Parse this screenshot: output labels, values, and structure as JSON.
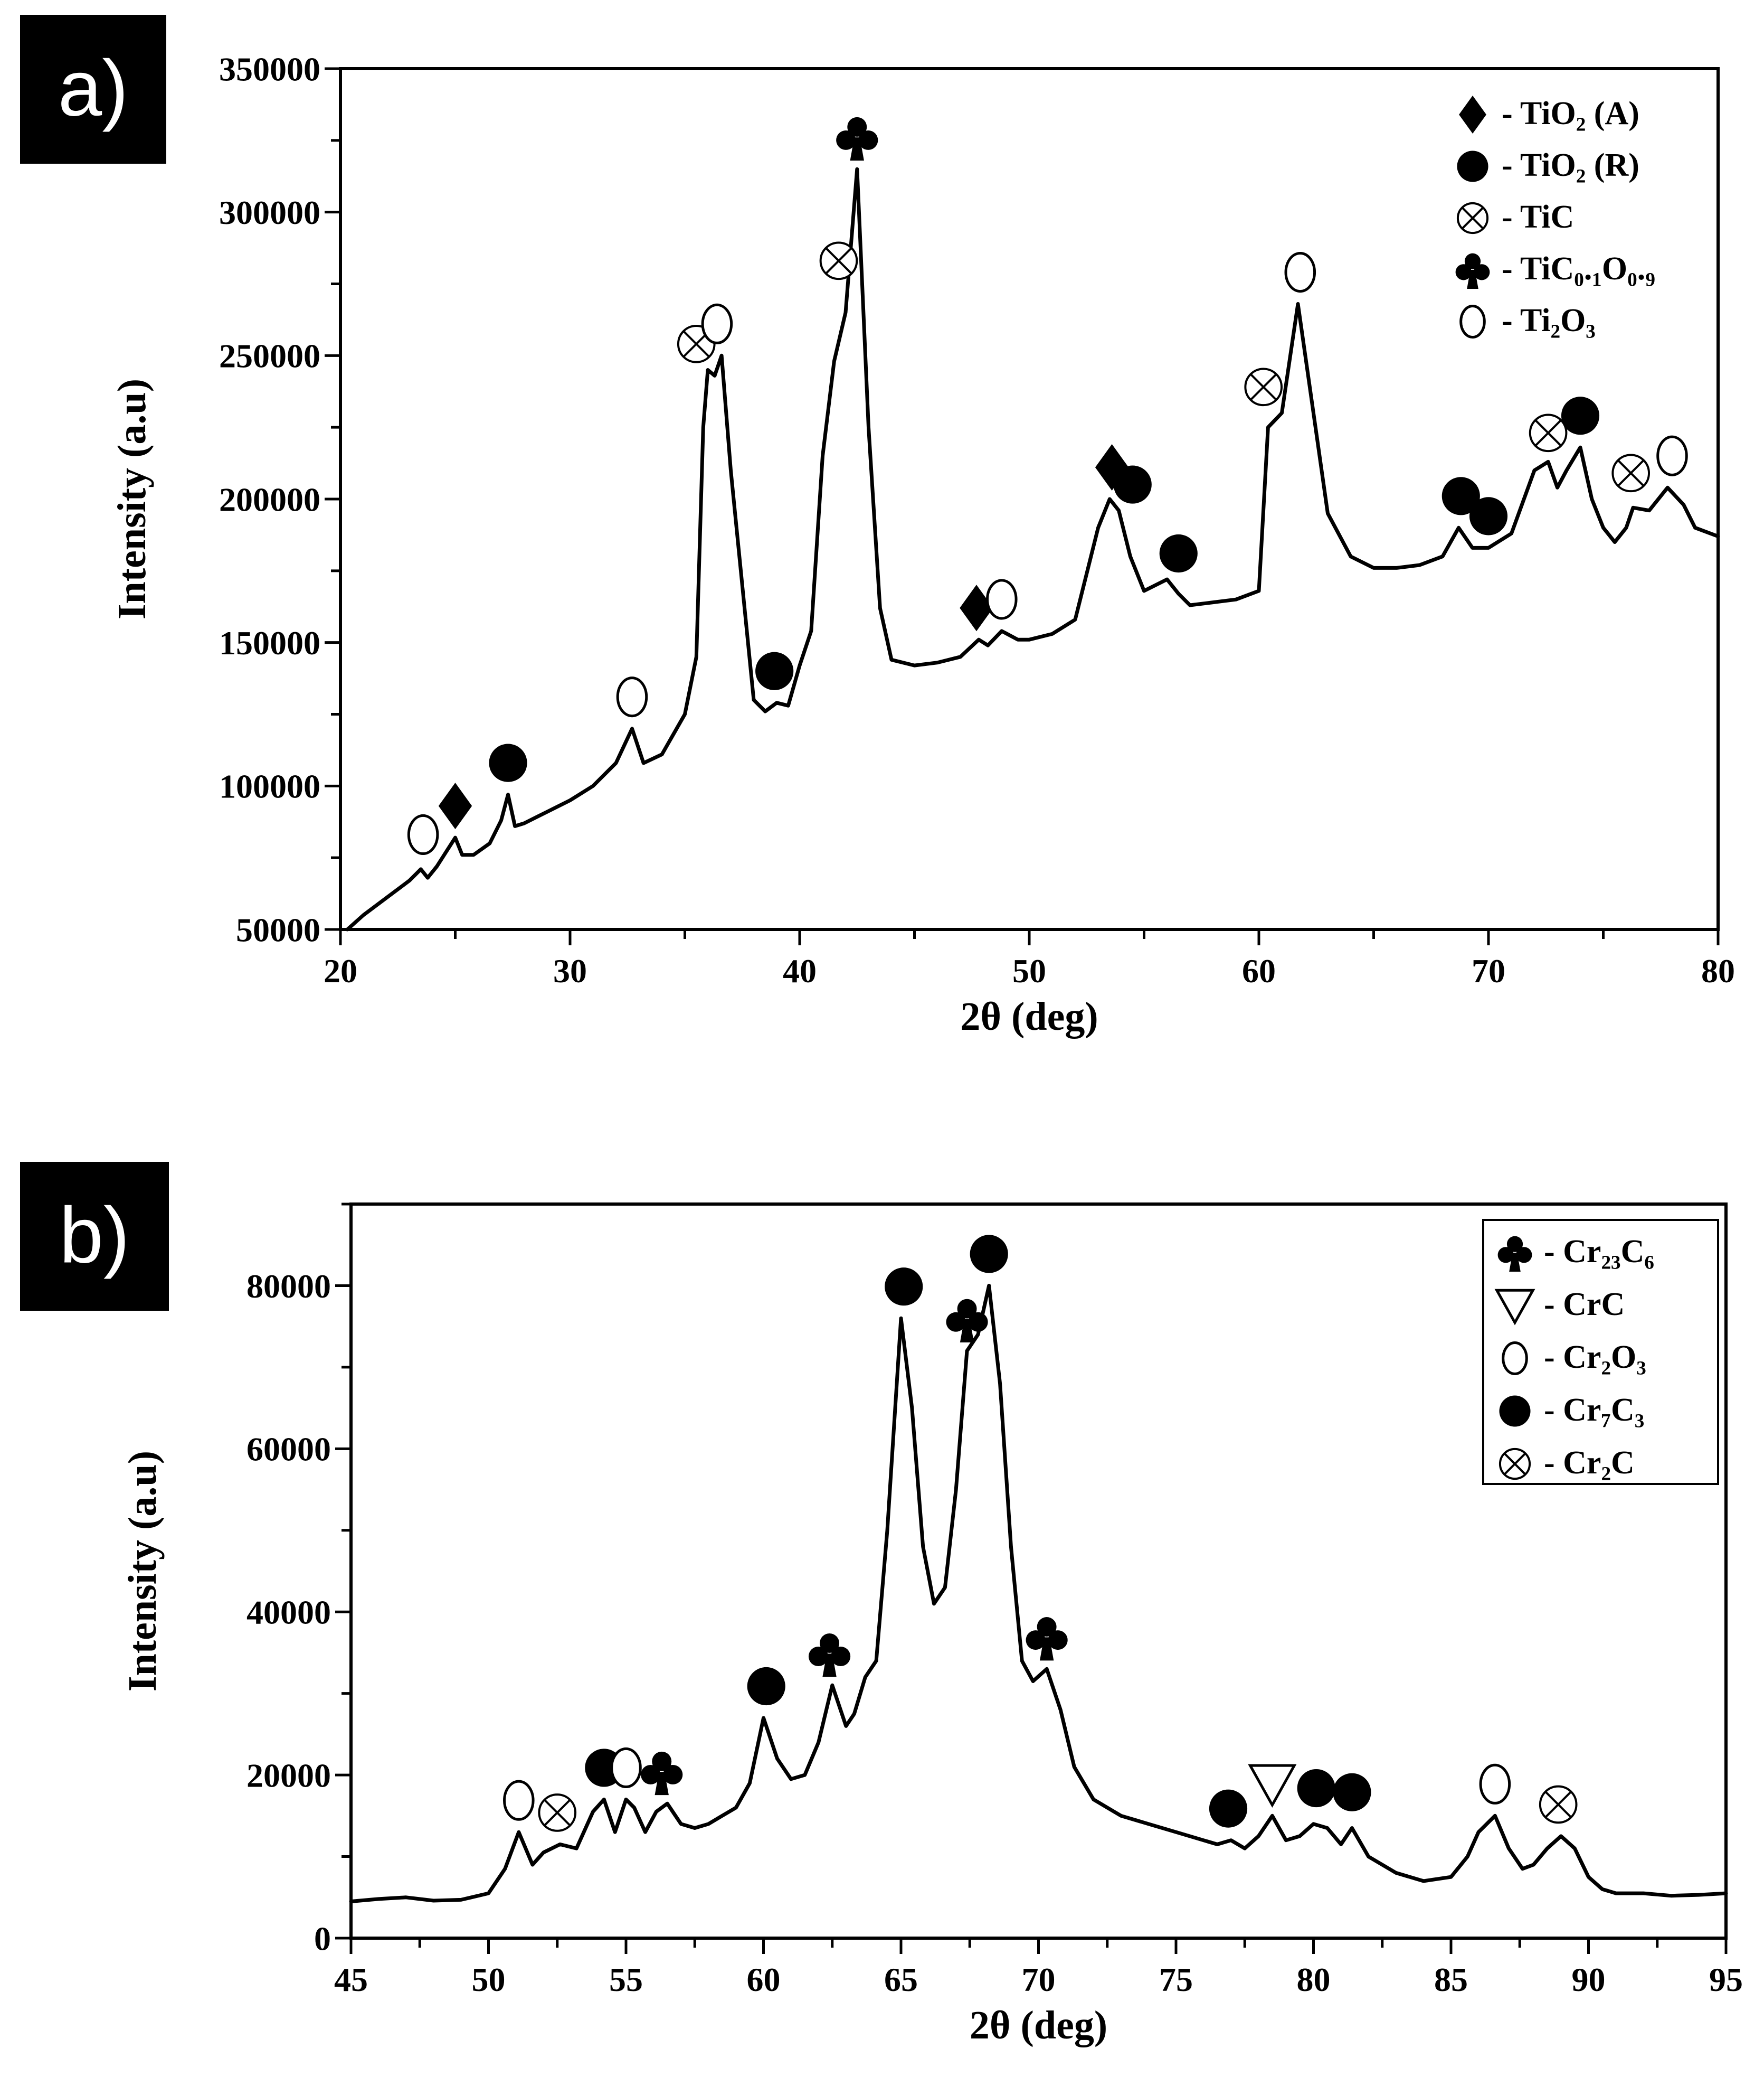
{
  "chart_data": [
    {
      "type": "line",
      "panel_label": "a)",
      "xlabel": "2θ (deg)",
      "ylabel": "Intensity (a.u)",
      "xlim": [
        20,
        80
      ],
      "ylim": [
        50000,
        350000
      ],
      "xticks": [
        20,
        30,
        40,
        50,
        60,
        70,
        80
      ],
      "yticks": [
        50000,
        100000,
        150000,
        200000,
        250000,
        300000,
        350000
      ],
      "ytick_labels": [
        "50000",
        "100000",
        "150000",
        "200000",
        "250000",
        "300000",
        "350000"
      ],
      "legend_position": "top-right",
      "legend": [
        {
          "marker": "diamond",
          "label": "- TiO₂ (A)"
        },
        {
          "marker": "filled-circle",
          "label": "- TiO₂ (R)"
        },
        {
          "marker": "otimes",
          "label": "- TiC"
        },
        {
          "marker": "club",
          "label": "- TiC₀.₁O₀.₉"
        },
        {
          "marker": "open-o",
          "label": "- Ti₂O₃"
        }
      ],
      "series": [
        {
          "name": "XRD pattern",
          "x": [
            20.3,
            21,
            22,
            23,
            23.5,
            23.8,
            24.2,
            24.6,
            25,
            25.3,
            25.8,
            26.5,
            27,
            27.3,
            27.6,
            28,
            29,
            30,
            31,
            32,
            32.7,
            33.2,
            34,
            35,
            35.5,
            35.8,
            36,
            36.3,
            36.6,
            37,
            38,
            38.5,
            39,
            39.5,
            40,
            40.5,
            41,
            41.5,
            42,
            42.5,
            43,
            43.5,
            44,
            45,
            46,
            47,
            47.8,
            48.2,
            48.8,
            49.5,
            50,
            51,
            52,
            53,
            53.5,
            53.9,
            54.4,
            55,
            56,
            56.5,
            57,
            58,
            59,
            60,
            60.4,
            61,
            61.7,
            62.2,
            63,
            64,
            65,
            66,
            67,
            68,
            68.7,
            69.3,
            70,
            71,
            72,
            72.6,
            73,
            73.4,
            74,
            74.5,
            75,
            75.5,
            76,
            76.3,
            77,
            77.8,
            78.5,
            79,
            80
          ],
          "values": [
            50000,
            55000,
            61000,
            67000,
            71000,
            68000,
            72000,
            77000,
            82000,
            76000,
            76000,
            80000,
            88000,
            97000,
            86000,
            87000,
            91000,
            95000,
            100000,
            108000,
            120000,
            108000,
            111000,
            125000,
            145000,
            225000,
            245000,
            243000,
            250000,
            210000,
            130000,
            126000,
            129000,
            128000,
            142000,
            154000,
            215000,
            248000,
            265000,
            315000,
            225000,
            162000,
            144000,
            142000,
            143000,
            145000,
            151000,
            149000,
            154000,
            151000,
            151000,
            153000,
            158000,
            190000,
            200000,
            196000,
            180000,
            168000,
            172000,
            167000,
            163000,
            164000,
            165000,
            168000,
            225000,
            230000,
            268000,
            240000,
            195000,
            180000,
            176000,
            176000,
            177000,
            180000,
            190000,
            183000,
            183000,
            188000,
            210000,
            213000,
            204000,
            210000,
            218000,
            200000,
            190000,
            185000,
            190000,
            197000,
            196000,
            204000,
            198000,
            190000,
            187000
          ]
        }
      ],
      "peak_markers": [
        {
          "x": 23.6,
          "y": 72000,
          "marker": "open-o"
        },
        {
          "x": 25.0,
          "y": 82000,
          "marker": "diamond"
        },
        {
          "x": 27.3,
          "y": 97000,
          "marker": "filled-circle"
        },
        {
          "x": 32.7,
          "y": 120000,
          "marker": "open-o"
        },
        {
          "x": 35.5,
          "y": 243000,
          "marker": "otimes"
        },
        {
          "x": 36.4,
          "y": 250000,
          "marker": "open-o"
        },
        {
          "x": 38.9,
          "y": 129000,
          "marker": "filled-circle"
        },
        {
          "x": 41.7,
          "y": 272000,
          "marker": "otimes"
        },
        {
          "x": 42.5,
          "y": 315000,
          "marker": "club"
        },
        {
          "x": 47.7,
          "y": 151000,
          "marker": "diamond"
        },
        {
          "x": 48.8,
          "y": 154000,
          "marker": "open-o"
        },
        {
          "x": 53.6,
          "y": 200000,
          "marker": "diamond"
        },
        {
          "x": 54.5,
          "y": 194000,
          "marker": "filled-circle"
        },
        {
          "x": 56.5,
          "y": 170000,
          "marker": "filled-circle"
        },
        {
          "x": 60.2,
          "y": 228000,
          "marker": "otimes"
        },
        {
          "x": 61.8,
          "y": 268000,
          "marker": "open-o"
        },
        {
          "x": 68.8,
          "y": 190000,
          "marker": "filled-circle"
        },
        {
          "x": 70.0,
          "y": 183000,
          "marker": "filled-circle"
        },
        {
          "x": 72.6,
          "y": 212000,
          "marker": "otimes"
        },
        {
          "x": 74.0,
          "y": 218000,
          "marker": "filled-circle"
        },
        {
          "x": 76.2,
          "y": 198000,
          "marker": "otimes"
        },
        {
          "x": 78.0,
          "y": 204000,
          "marker": "open-o"
        }
      ]
    },
    {
      "type": "line",
      "panel_label": "b)",
      "xlabel": "2θ (deg)",
      "ylabel": "Intensity (a.u)",
      "xlim": [
        45,
        95
      ],
      "ylim": [
        0,
        90000
      ],
      "xticks": [
        45,
        50,
        55,
        60,
        65,
        70,
        75,
        80,
        85,
        90,
        95
      ],
      "yticks": [
        0,
        20000,
        40000,
        60000,
        80000
      ],
      "ytick_labels": [
        "0",
        "20000",
        "40000",
        "60000",
        "80000"
      ],
      "legend_position": "top-right",
      "legend": [
        {
          "marker": "club",
          "label": "- Cr₂₃C₆"
        },
        {
          "marker": "triangle-down",
          "label": "- CrC"
        },
        {
          "marker": "open-o",
          "label": "- Cr₂O₃"
        },
        {
          "marker": "filled-circle",
          "label": "- Cr₇C₃"
        },
        {
          "marker": "otimes",
          "label": "- Cr₂C"
        }
      ],
      "series": [
        {
          "name": "XRD pattern",
          "x": [
            45,
            46,
            47,
            48,
            49,
            50,
            50.6,
            51.1,
            51.6,
            52,
            52.6,
            53.2,
            53.8,
            54.2,
            54.6,
            55,
            55.3,
            55.7,
            56.1,
            56.5,
            57,
            57.5,
            58,
            58.5,
            59,
            59.5,
            60,
            60.5,
            61,
            61.5,
            62,
            62.5,
            63,
            63.3,
            63.7,
            64.1,
            64.5,
            65,
            65.4,
            65.8,
            66.2,
            66.6,
            67,
            67.4,
            67.8,
            68.2,
            68.6,
            69,
            69.4,
            69.8,
            70.3,
            70.8,
            71.3,
            72,
            73,
            74,
            75,
            76,
            76.5,
            77,
            77.5,
            78,
            78.5,
            79,
            79.5,
            80,
            80.5,
            81,
            81.4,
            82,
            83,
            84,
            85,
            85.6,
            86,
            86.6,
            87.1,
            87.6,
            88,
            88.5,
            89,
            89.5,
            90,
            90.5,
            91,
            92,
            93,
            94,
            95
          ],
          "values": [
            4500,
            4800,
            5000,
            4600,
            4700,
            5500,
            8500,
            13000,
            9000,
            10500,
            11500,
            11000,
            15500,
            17000,
            13000,
            17000,
            16000,
            13000,
            15500,
            16500,
            14000,
            13500,
            14000,
            15000,
            16000,
            19000,
            27000,
            22000,
            19500,
            20000,
            24000,
            31000,
            26000,
            27500,
            32000,
            34000,
            50000,
            76000,
            65000,
            48000,
            41000,
            43000,
            55000,
            72000,
            74000,
            80000,
            68000,
            48000,
            34000,
            31500,
            33000,
            28000,
            21000,
            17000,
            15000,
            14000,
            13000,
            12000,
            11500,
            12000,
            11000,
            12500,
            15000,
            12000,
            12500,
            14000,
            13500,
            11500,
            13500,
            10000,
            8000,
            7000,
            7500,
            10000,
            13000,
            15000,
            11000,
            8500,
            9000,
            11000,
            12500,
            11000,
            7500,
            6000,
            5500,
            5500,
            5200,
            5300,
            5500
          ]
        }
      ],
      "peak_markers": [
        {
          "x": 51.1,
          "y": 13000,
          "marker": "open-o"
        },
        {
          "x": 52.5,
          "y": 11500,
          "marker": "otimes"
        },
        {
          "x": 54.2,
          "y": 17000,
          "marker": "filled-circle"
        },
        {
          "x": 55.0,
          "y": 17000,
          "marker": "open-o"
        },
        {
          "x": 56.3,
          "y": 16500,
          "marker": "club"
        },
        {
          "x": 60.1,
          "y": 27000,
          "marker": "filled-circle"
        },
        {
          "x": 62.4,
          "y": 31000,
          "marker": "club"
        },
        {
          "x": 65.1,
          "y": 76000,
          "marker": "filled-circle"
        },
        {
          "x": 67.4,
          "y": 72000,
          "marker": "club"
        },
        {
          "x": 68.2,
          "y": 80000,
          "marker": "filled-circle"
        },
        {
          "x": 70.3,
          "y": 33000,
          "marker": "club"
        },
        {
          "x": 76.9,
          "y": 12000,
          "marker": "filled-circle"
        },
        {
          "x": 78.5,
          "y": 15000,
          "marker": "triangle-down"
        },
        {
          "x": 80.1,
          "y": 14500,
          "marker": "filled-circle"
        },
        {
          "x": 81.4,
          "y": 14000,
          "marker": "filled-circle"
        },
        {
          "x": 86.6,
          "y": 15000,
          "marker": "open-o"
        },
        {
          "x": 88.9,
          "y": 12500,
          "marker": "otimes"
        }
      ]
    }
  ]
}
